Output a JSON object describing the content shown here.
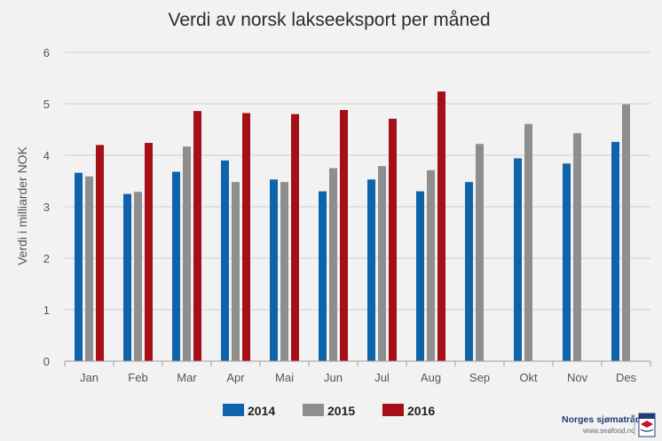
{
  "chart_data": {
    "type": "bar",
    "title": "Verdi av norsk lakseeksport per måned",
    "ylabel": "Verdi i milliarder NOK",
    "xlabel": "",
    "ylim": [
      0,
      6
    ],
    "yticks": [
      0,
      1,
      2,
      3,
      4,
      5,
      6
    ],
    "grid": true,
    "legend_position": "bottom",
    "categories": [
      "Jan",
      "Feb",
      "Mar",
      "Apr",
      "Mai",
      "Jun",
      "Jul",
      "Aug",
      "Sep",
      "Okt",
      "Nov",
      "Des"
    ],
    "series": [
      {
        "name": "2014",
        "color": "#0e64ab",
        "values": [
          3.66,
          3.25,
          3.68,
          3.9,
          3.53,
          3.3,
          3.53,
          3.3,
          3.48,
          3.94,
          3.84,
          4.26
        ]
      },
      {
        "name": "2015",
        "color": "#8e8e8e",
        "values": [
          3.59,
          3.29,
          4.17,
          3.48,
          3.48,
          3.75,
          3.79,
          3.71,
          4.22,
          4.61,
          4.43,
          4.99
        ]
      },
      {
        "name": "2016",
        "color": "#a50f15",
        "values": [
          4.2,
          4.24,
          4.86,
          4.82,
          4.8,
          4.88,
          4.71,
          5.24,
          null,
          null,
          null,
          null
        ]
      }
    ]
  },
  "logo": {
    "name": "Norges sjømatråd",
    "url": "www.seafood.no",
    "badge_text": "NORGE",
    "colors": {
      "primary": "#1f3f73",
      "accent": "#c8102e"
    }
  }
}
